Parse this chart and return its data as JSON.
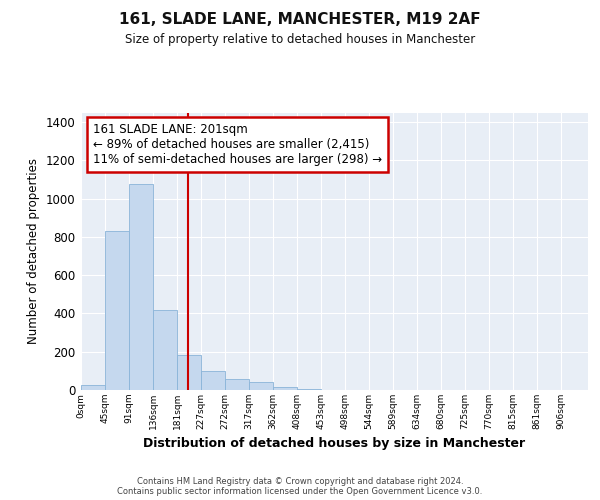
{
  "title": "161, SLADE LANE, MANCHESTER, M19 2AF",
  "subtitle": "Size of property relative to detached houses in Manchester",
  "xlabel": "Distribution of detached houses by size in Manchester",
  "ylabel": "Number of detached properties",
  "bar_color": "#c5d8ee",
  "bar_edge_color": "#8ab4d8",
  "background_color": "#e8eef6",
  "grid_color": "#ffffff",
  "bin_labels": [
    "0sqm",
    "45sqm",
    "91sqm",
    "136sqm",
    "181sqm",
    "227sqm",
    "272sqm",
    "317sqm",
    "362sqm",
    "408sqm",
    "453sqm",
    "498sqm",
    "544sqm",
    "589sqm",
    "634sqm",
    "680sqm",
    "725sqm",
    "770sqm",
    "815sqm",
    "861sqm",
    "906sqm"
  ],
  "bar_values": [
    25,
    830,
    1075,
    420,
    185,
    100,
    60,
    40,
    15,
    5,
    0,
    0,
    0,
    0,
    0,
    0,
    0,
    0,
    0,
    0
  ],
  "ylim": [
    0,
    1450
  ],
  "yticks": [
    0,
    200,
    400,
    600,
    800,
    1000,
    1200,
    1400
  ],
  "vline_x": 201,
  "annotation_text": "161 SLADE LANE: 201sqm\n← 89% of detached houses are smaller (2,415)\n11% of semi-detached houses are larger (298) →",
  "footer_text": "Contains HM Land Registry data © Crown copyright and database right 2024.\nContains public sector information licensed under the Open Government Licence v3.0.",
  "bin_width": 45
}
